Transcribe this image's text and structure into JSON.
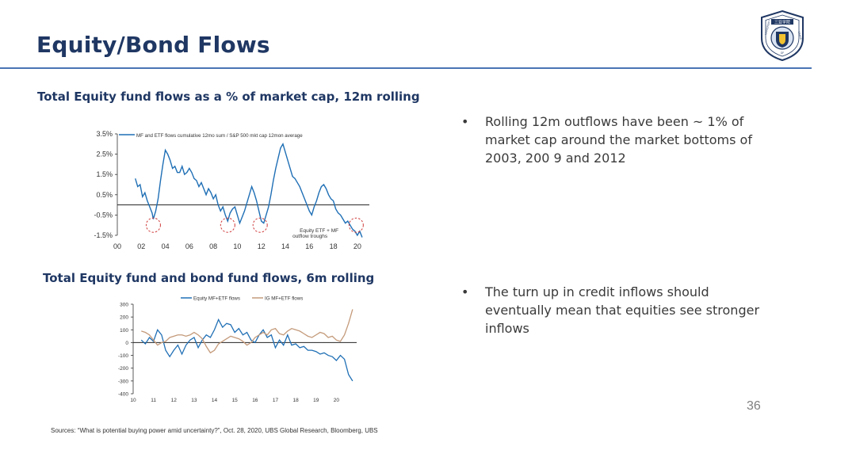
{
  "slide": {
    "title": "Equity/Bond Flows",
    "page_number": "36",
    "sources": "Sources: “What is potential buying power amid uncertainty?”, Oct. 28, 2020, UBS Global Research, Bloomberg, UBS"
  },
  "logo": {
    "top_text": "三亚学院",
    "left_text": "UNIVERSITY",
    "right_text": "SANYA",
    "bottom_text": "OF"
  },
  "bullets": [
    {
      "text": "Rolling 12m outflows have been ~ 1% of market cap around the market bottoms of 2003, 200 9 and 2012"
    },
    {
      "text": "The turn up in credit inflows should eventually mean that equities see stronger inflows"
    }
  ],
  "colors": {
    "title": "#1f3763",
    "rule": "#4a74b5",
    "equity_series": "#1f6fb5",
    "ig_series": "#c49a7a",
    "trough_circle": "#d03a3a"
  },
  "chart_data": [
    {
      "type": "line",
      "title": "Total Equity fund flows as a % of market cap, 12m rolling",
      "legend": "MF and ETF flows cumulative 12mo sum / S&P 500 mkt cap 12mon average",
      "annotation": "Equity ETF + MF outflow troughs",
      "ylim": [
        -1.5,
        3.5
      ],
      "y_ticks": [
        "3.5%",
        "2.5%",
        "1.5%",
        "0.5%",
        "-0.5%",
        "-1.5%"
      ],
      "y_tick_values": [
        3.5,
        2.5,
        1.5,
        0.5,
        -0.5,
        -1.5
      ],
      "xlim": [
        0,
        21
      ],
      "x_ticks": [
        "00",
        "02",
        "04",
        "06",
        "08",
        "10",
        "12",
        "14",
        "16",
        "18",
        "20"
      ],
      "x_tick_values": [
        0,
        2,
        4,
        6,
        8,
        10,
        12,
        14,
        16,
        18,
        20
      ],
      "troughs": [
        3.0,
        9.2,
        11.9,
        19.9
      ],
      "series": [
        {
          "name": "MF and ETF flows cumulative 12mo sum / S&P 500 mkt cap 12mon average",
          "x": [
            1.5,
            1.7,
            1.9,
            2.1,
            2.3,
            2.5,
            2.7,
            2.9,
            3.0,
            3.2,
            3.4,
            3.6,
            3.8,
            4.0,
            4.2,
            4.4,
            4.6,
            4.8,
            5.0,
            5.2,
            5.4,
            5.6,
            5.8,
            6.0,
            6.2,
            6.4,
            6.6,
            6.8,
            7.0,
            7.2,
            7.4,
            7.6,
            7.8,
            8.0,
            8.2,
            8.4,
            8.6,
            8.8,
            9.0,
            9.2,
            9.4,
            9.6,
            9.8,
            10.0,
            10.2,
            10.4,
            10.6,
            10.8,
            11.0,
            11.2,
            11.4,
            11.6,
            11.8,
            12.0,
            12.2,
            12.4,
            12.6,
            12.8,
            13.0,
            13.2,
            13.4,
            13.6,
            13.8,
            14.0,
            14.2,
            14.4,
            14.6,
            14.8,
            15.0,
            15.2,
            15.4,
            15.6,
            15.8,
            16.0,
            16.2,
            16.4,
            16.6,
            16.8,
            17.0,
            17.2,
            17.4,
            17.6,
            17.8,
            18.0,
            18.2,
            18.4,
            18.6,
            18.8,
            19.0,
            19.2,
            19.4,
            19.6,
            19.8,
            20.0,
            20.2,
            20.4
          ],
          "values": [
            1.3,
            0.9,
            1.0,
            0.4,
            0.6,
            0.2,
            -0.1,
            -0.4,
            -0.7,
            -0.3,
            0.3,
            1.2,
            2.0,
            2.7,
            2.5,
            2.2,
            1.8,
            1.9,
            1.6,
            1.6,
            1.9,
            1.5,
            1.6,
            1.8,
            1.6,
            1.3,
            1.2,
            0.9,
            1.1,
            0.8,
            0.5,
            0.8,
            0.6,
            0.3,
            0.5,
            0.0,
            -0.3,
            -0.1,
            -0.5,
            -0.8,
            -0.4,
            -0.2,
            -0.1,
            -0.5,
            -0.9,
            -0.6,
            -0.3,
            0.1,
            0.5,
            0.9,
            0.6,
            0.2,
            -0.3,
            -0.8,
            -0.9,
            -0.5,
            -0.1,
            0.5,
            1.2,
            1.8,
            2.3,
            2.8,
            3.0,
            2.6,
            2.2,
            1.8,
            1.4,
            1.3,
            1.1,
            0.9,
            0.6,
            0.3,
            0.0,
            -0.3,
            -0.5,
            -0.1,
            0.2,
            0.6,
            0.9,
            1.0,
            0.8,
            0.5,
            0.3,
            0.2,
            -0.2,
            -0.4,
            -0.5,
            -0.7,
            -0.9,
            -0.8,
            -1.0,
            -1.2,
            -1.3,
            -1.5,
            -1.3,
            -1.6
          ]
        }
      ]
    },
    {
      "type": "line",
      "title": "Total Equity fund  and bond fund flows, 6m rolling",
      "ylim": [
        -400,
        300
      ],
      "y_ticks": [
        "300",
        "200",
        "100",
        "0",
        "-100",
        "-200",
        "-300",
        "-400"
      ],
      "y_tick_values": [
        300,
        200,
        100,
        0,
        -100,
        -200,
        -300,
        -400
      ],
      "xlim": [
        10,
        21
      ],
      "x_ticks": [
        "10",
        "11",
        "12",
        "13",
        "14",
        "15",
        "16",
        "17",
        "18",
        "19",
        "20"
      ],
      "x_tick_values": [
        10,
        11,
        12,
        13,
        14,
        15,
        16,
        17,
        18,
        19,
        20
      ],
      "series": [
        {
          "name": "Equity MF+ETF flows",
          "x": [
            10.4,
            10.6,
            10.8,
            11.0,
            11.2,
            11.4,
            11.6,
            11.8,
            12.0,
            12.2,
            12.4,
            12.6,
            12.8,
            13.0,
            13.2,
            13.4,
            13.6,
            13.8,
            14.0,
            14.2,
            14.4,
            14.6,
            14.8,
            15.0,
            15.2,
            15.4,
            15.6,
            15.8,
            16.0,
            16.2,
            16.4,
            16.6,
            16.8,
            17.0,
            17.2,
            17.4,
            17.6,
            17.8,
            18.0,
            18.2,
            18.4,
            18.6,
            18.8,
            19.0,
            19.2,
            19.4,
            19.6,
            19.8,
            20.0,
            20.2,
            20.4,
            20.6,
            20.8
          ],
          "values": [
            20,
            -10,
            40,
            10,
            100,
            60,
            -60,
            -110,
            -60,
            -20,
            -90,
            -20,
            20,
            40,
            -40,
            20,
            60,
            40,
            100,
            180,
            120,
            150,
            140,
            80,
            110,
            60,
            80,
            20,
            0,
            60,
            100,
            40,
            60,
            -40,
            20,
            -20,
            60,
            -20,
            -10,
            -40,
            -30,
            -60,
            -60,
            -70,
            -90,
            -80,
            -100,
            -110,
            -140,
            -100,
            -130,
            -250,
            -300
          ]
        },
        {
          "name": "IG MF+ETF flows",
          "x": [
            10.4,
            10.6,
            10.8,
            11.0,
            11.2,
            11.4,
            11.6,
            11.8,
            12.0,
            12.2,
            12.4,
            12.6,
            12.8,
            13.0,
            13.2,
            13.4,
            13.6,
            13.8,
            14.0,
            14.2,
            14.4,
            14.6,
            14.8,
            15.0,
            15.2,
            15.4,
            15.6,
            15.8,
            16.0,
            16.2,
            16.4,
            16.6,
            16.8,
            17.0,
            17.2,
            17.4,
            17.6,
            17.8,
            18.0,
            18.2,
            18.4,
            18.6,
            18.8,
            19.0,
            19.2,
            19.4,
            19.6,
            19.8,
            20.0,
            20.2,
            20.4,
            20.6,
            20.8
          ],
          "values": [
            90,
            80,
            60,
            20,
            -20,
            0,
            10,
            40,
            50,
            60,
            60,
            50,
            60,
            80,
            60,
            30,
            -30,
            -80,
            -60,
            -10,
            10,
            30,
            50,
            40,
            30,
            10,
            -20,
            0,
            40,
            60,
            80,
            60,
            100,
            110,
            70,
            60,
            90,
            110,
            100,
            90,
            70,
            50,
            40,
            60,
            80,
            70,
            40,
            50,
            20,
            10,
            60,
            150,
            260
          ]
        }
      ]
    }
  ]
}
